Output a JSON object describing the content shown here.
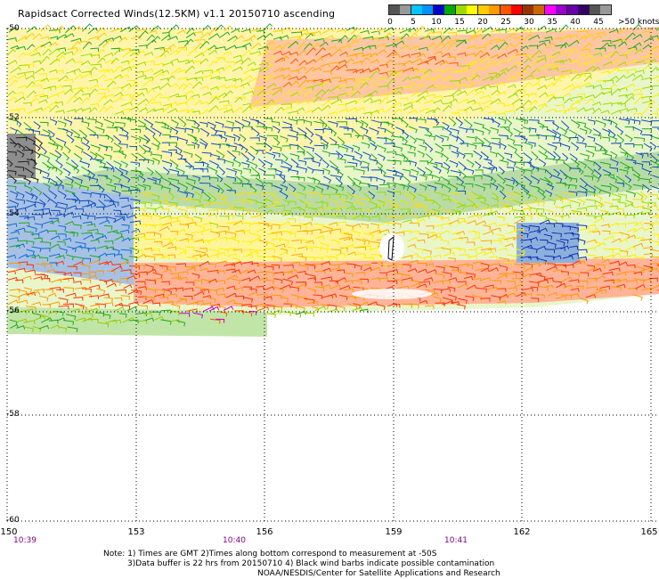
{
  "title": "Rapidsact Corrected Winds(12.5KM) v1.1 20150710 ascending",
  "legend": {
    "colors": [
      "#555555",
      "#999999",
      "#00c8ff",
      "#0090ff",
      "#0000cc",
      "#00aa00",
      "#99dd00",
      "#ffff00",
      "#ffcc00",
      "#ff9900",
      "#ff5500",
      "#ff0000",
      "#993300",
      "#cc6600",
      "#ff00ff",
      "#9900cc",
      "#6600aa",
      "#330066"
    ],
    "ticks": [
      "0",
      "5",
      "10",
      "15",
      "20",
      "25",
      "30",
      "35",
      "40",
      "45"
    ],
    "unit": ">50 knots"
  },
  "axes": {
    "lat_labels": [
      "-50",
      "-52",
      "-54",
      "-56",
      "-58",
      "-60"
    ],
    "lon_labels": [
      "150",
      "153",
      "156",
      "159",
      "162",
      "165"
    ],
    "times": [
      "10:39",
      "10:40",
      "10:41"
    ]
  },
  "notes": [
    "Note: 1) Times are GMT 2)Times along bottom correspond to measurement at -50S",
    "3)Data buffer is 22 hrs from 20150710 4) Black wind barbs indicate possible contamination",
    "NOAA/NESDIS/Center for Satellite Applications and Research"
  ]
}
